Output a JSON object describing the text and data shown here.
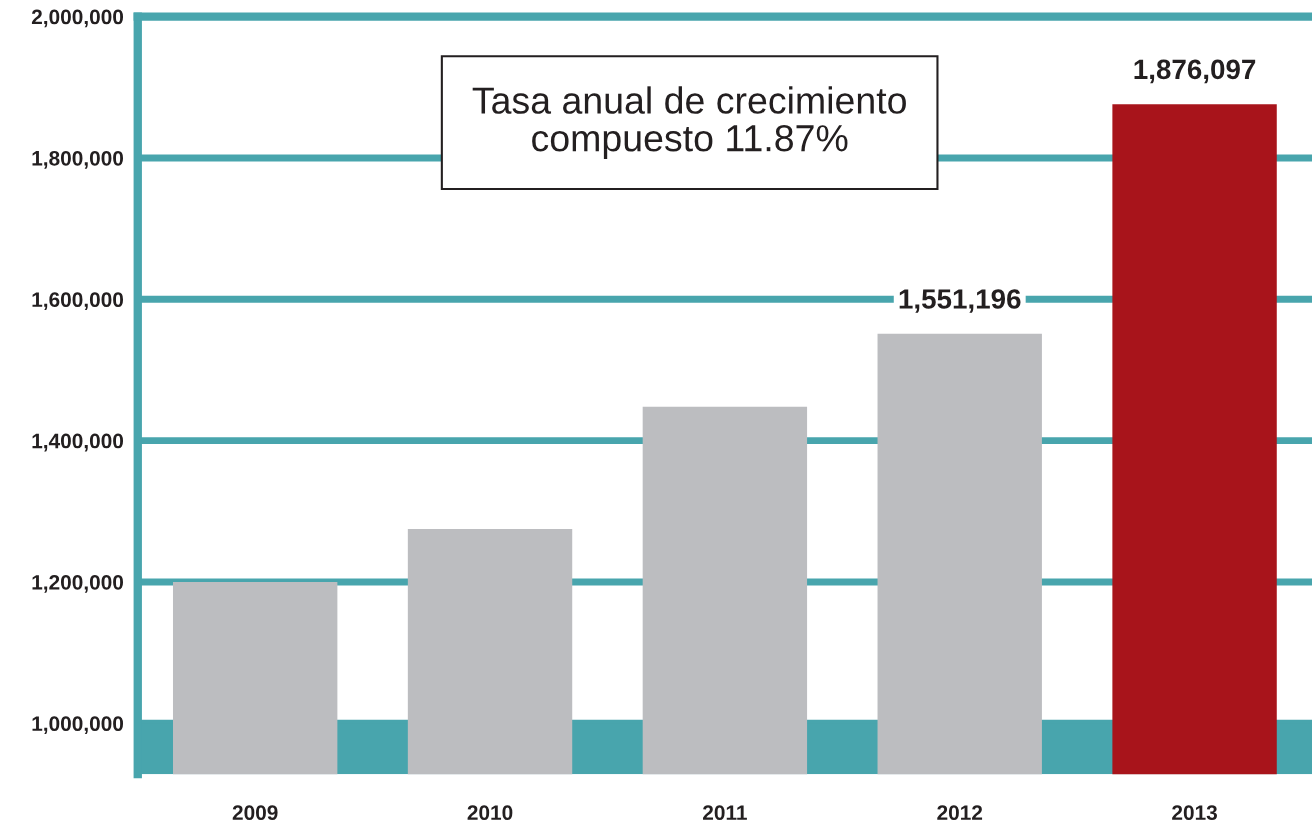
{
  "chart_data": {
    "type": "bar",
    "categories": [
      "2009",
      "2010",
      "2011",
      "2012",
      "2013"
    ],
    "values": [
      1200000,
      1275000,
      1448000,
      1551196,
      1876097
    ],
    "colors": [
      "#bcbdc0",
      "#bcbdc0",
      "#bcbdc0",
      "#bcbdc0",
      "#a8141b"
    ],
    "value_labels": [
      null,
      null,
      null,
      "1,551,196",
      "1,876,097"
    ],
    "ylim": [
      928000,
      2000000
    ],
    "yticks": [
      {
        "value": 1000000,
        "label": "1,000,000"
      },
      {
        "value": 1200000,
        "label": "1,200,000"
      },
      {
        "value": 1400000,
        "label": "1,400,000"
      },
      {
        "value": 1600000,
        "label": "1,600,000"
      },
      {
        "value": 1800000,
        "label": "1,800,000"
      },
      {
        "value": 2000000,
        "label": "2,000,000"
      }
    ],
    "grid": "y",
    "bands": [
      {
        "axis": "y",
        "from": 928000,
        "to": 1000000,
        "color": "#48a5ad"
      }
    ],
    "annotations": [
      "Tasa anual de crecimiento\ncompuesto 11.87%"
    ]
  }
}
